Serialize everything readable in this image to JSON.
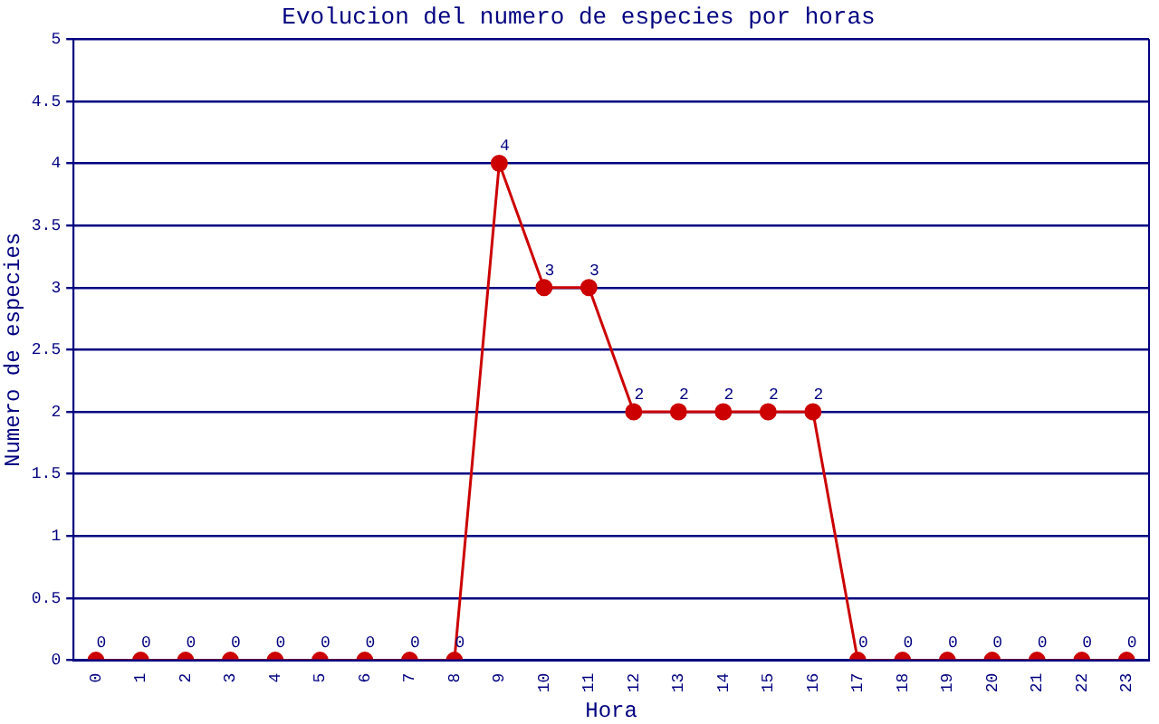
{
  "chart_data": {
    "type": "line",
    "title": "Evolucion del numero de especies por horas",
    "xlabel": "Hora",
    "ylabel": "Numero de especies",
    "categories": [
      "0",
      "1",
      "2",
      "3",
      "4",
      "5",
      "6",
      "7",
      "8",
      "9",
      "10",
      "11",
      "12",
      "13",
      "14",
      "15",
      "16",
      "17",
      "18",
      "19",
      "20",
      "21",
      "22",
      "23"
    ],
    "series": [
      {
        "color": "#cc0000",
        "values": [
          0,
          0,
          0,
          0,
          0,
          0,
          0,
          0,
          0,
          4,
          3,
          3,
          2,
          2,
          2,
          2,
          2,
          0,
          0,
          0,
          0,
          0,
          0,
          0
        ]
      }
    ],
    "ylim": [
      0,
      5
    ],
    "yticks": [
      0,
      0.5,
      1,
      1.5,
      2,
      2.5,
      3,
      3.5,
      4,
      4.5,
      5
    ],
    "grid": "y",
    "legend": false,
    "marker": "circle",
    "line_style": "solid",
    "data_labels": true
  }
}
